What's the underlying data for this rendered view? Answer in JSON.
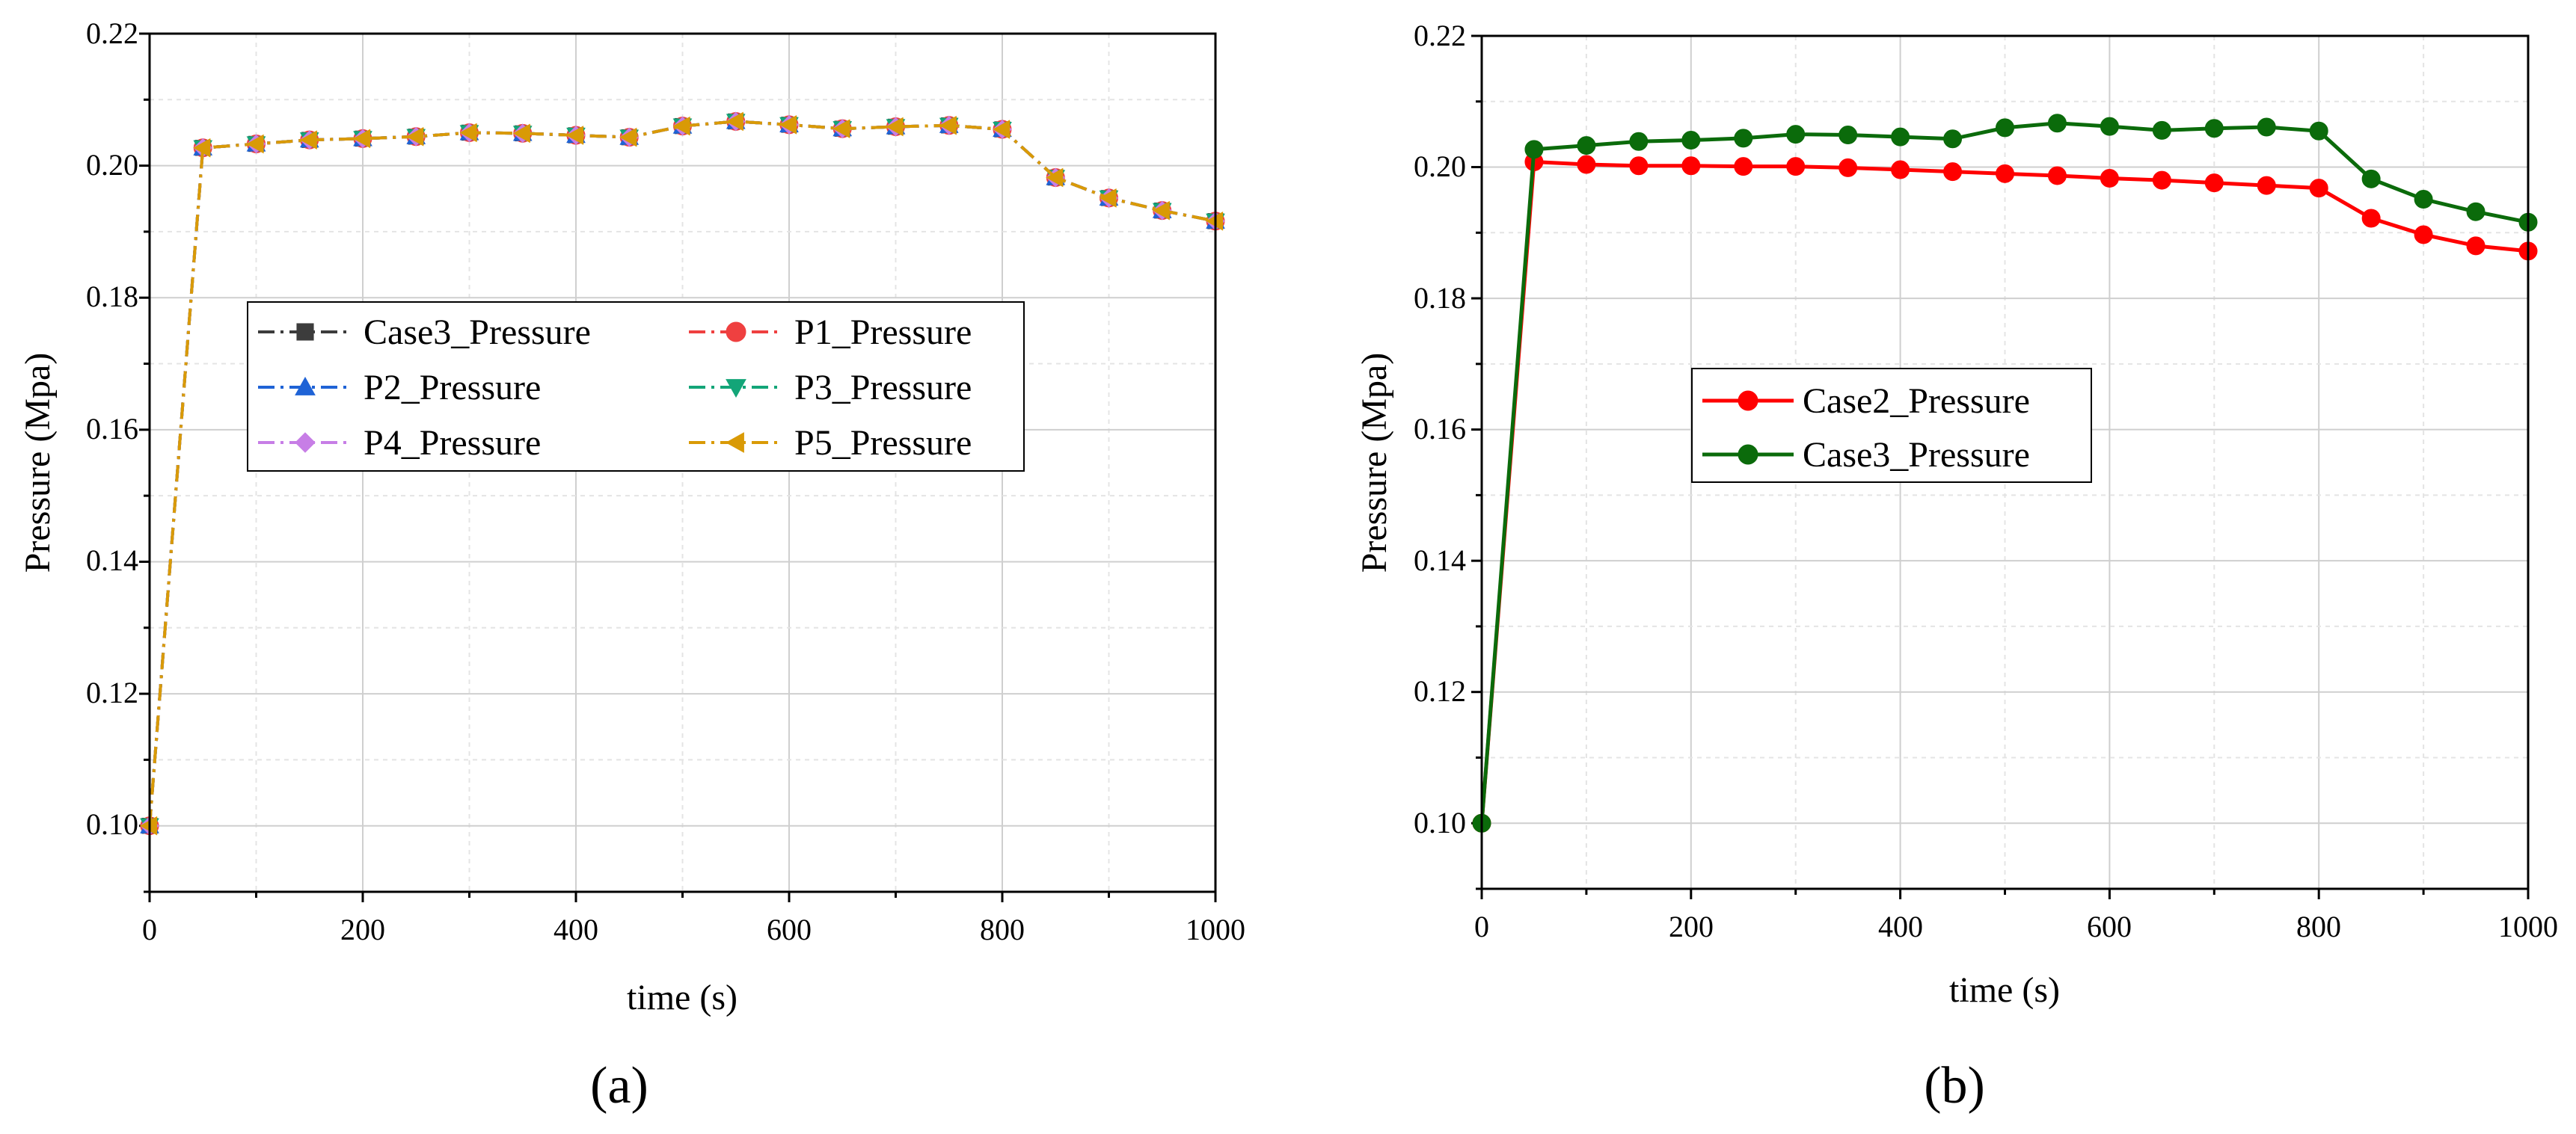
{
  "chart_data": [
    {
      "type": "line",
      "panel_label": "(a)",
      "xlabel": "time (s)",
      "ylabel": "Pressure (Mpa)",
      "xlim": [
        0,
        1000
      ],
      "ylim": [
        0.09,
        0.22
      ],
      "xticks": [
        "0",
        "200",
        "400",
        "600",
        "800",
        "1000"
      ],
      "yticks": [
        "0.10",
        "0.12",
        "0.14",
        "0.16",
        "0.18",
        "0.20",
        "0.22"
      ],
      "grid": true,
      "legend_position": "center",
      "legend_columns": 2,
      "x": [
        0,
        50,
        100,
        150,
        200,
        250,
        300,
        350,
        400,
        450,
        500,
        550,
        600,
        650,
        700,
        750,
        800,
        850,
        900,
        950,
        1000
      ],
      "series": [
        {
          "name": "Case3_Pressure",
          "color": "#3c3c3c",
          "marker": "square",
          "values": [
            0.1,
            0.2027,
            0.2033,
            0.2039,
            0.2041,
            0.2044,
            0.205,
            0.2049,
            0.2046,
            0.2043,
            0.206,
            0.2067,
            0.2062,
            0.2056,
            0.2059,
            0.2061,
            0.2055,
            0.1982,
            0.1951,
            0.1932,
            0.1916
          ]
        },
        {
          "name": "P1_Pressure",
          "color": "#ef4040",
          "marker": "circle",
          "values": [
            0.1,
            0.2027,
            0.2033,
            0.2039,
            0.2041,
            0.2044,
            0.205,
            0.2049,
            0.2046,
            0.2043,
            0.206,
            0.2067,
            0.2062,
            0.2056,
            0.2059,
            0.2061,
            0.2055,
            0.1982,
            0.1951,
            0.1932,
            0.1916
          ]
        },
        {
          "name": "P2_Pressure",
          "color": "#1f63d6",
          "marker": "triangle-up",
          "values": [
            0.1,
            0.2027,
            0.2033,
            0.2039,
            0.2041,
            0.2044,
            0.205,
            0.2049,
            0.2046,
            0.2043,
            0.206,
            0.2067,
            0.2062,
            0.2056,
            0.2059,
            0.2061,
            0.2055,
            0.1982,
            0.1951,
            0.1932,
            0.1916
          ]
        },
        {
          "name": "P3_Pressure",
          "color": "#13a578",
          "marker": "triangle-down",
          "values": [
            0.1,
            0.2027,
            0.2033,
            0.2039,
            0.2041,
            0.2044,
            0.205,
            0.2049,
            0.2046,
            0.2043,
            0.206,
            0.2067,
            0.2062,
            0.2056,
            0.2059,
            0.2061,
            0.2055,
            0.1982,
            0.1951,
            0.1932,
            0.1916
          ]
        },
        {
          "name": "P4_Pressure",
          "color": "#c77ee6",
          "marker": "diamond",
          "values": [
            0.1,
            0.2027,
            0.2033,
            0.2039,
            0.2041,
            0.2044,
            0.205,
            0.2049,
            0.2046,
            0.2043,
            0.206,
            0.2067,
            0.2062,
            0.2056,
            0.2059,
            0.2061,
            0.2055,
            0.1982,
            0.1951,
            0.1932,
            0.1916
          ]
        },
        {
          "name": "P5_Pressure",
          "color": "#d99a06",
          "marker": "triangle-left",
          "values": [
            0.1,
            0.2027,
            0.2033,
            0.2039,
            0.2041,
            0.2044,
            0.205,
            0.2049,
            0.2046,
            0.2043,
            0.206,
            0.2067,
            0.2062,
            0.2056,
            0.2059,
            0.2061,
            0.2055,
            0.1982,
            0.1951,
            0.1932,
            0.1916
          ]
        }
      ]
    },
    {
      "type": "line",
      "panel_label": "(b)",
      "xlabel": "time (s)",
      "ylabel": "Pressure (Mpa)",
      "xlim": [
        0,
        1000
      ],
      "ylim": [
        0.09,
        0.22
      ],
      "xticks": [
        "0",
        "200",
        "400",
        "600",
        "800",
        "1000"
      ],
      "yticks": [
        "0.10",
        "0.12",
        "0.14",
        "0.16",
        "0.18",
        "0.20",
        "0.22"
      ],
      "grid": true,
      "legend_position": "center-left",
      "legend_columns": 1,
      "x": [
        0,
        50,
        100,
        150,
        200,
        250,
        300,
        350,
        400,
        450,
        500,
        550,
        600,
        650,
        700,
        750,
        800,
        850,
        900,
        950,
        1000
      ],
      "series": [
        {
          "name": "Case2_Pressure",
          "color": "#ff0000",
          "marker": "circle",
          "values": [
            0.1,
            0.2008,
            0.2004,
            0.2002,
            0.2002,
            0.2001,
            0.2001,
            0.1999,
            0.1996,
            0.1993,
            0.199,
            0.1987,
            0.1983,
            0.198,
            0.1976,
            0.1972,
            0.1968,
            0.1922,
            0.1897,
            0.188,
            0.1872
          ]
        },
        {
          "name": "Case3_Pressure",
          "color": "#0b6b0b",
          "marker": "circle",
          "values": [
            0.1,
            0.2027,
            0.2033,
            0.2039,
            0.2041,
            0.2044,
            0.205,
            0.2049,
            0.2046,
            0.2043,
            0.206,
            0.2067,
            0.2062,
            0.2056,
            0.2059,
            0.2061,
            0.2055,
            0.1982,
            0.1951,
            0.1932,
            0.1916
          ]
        }
      ]
    }
  ]
}
